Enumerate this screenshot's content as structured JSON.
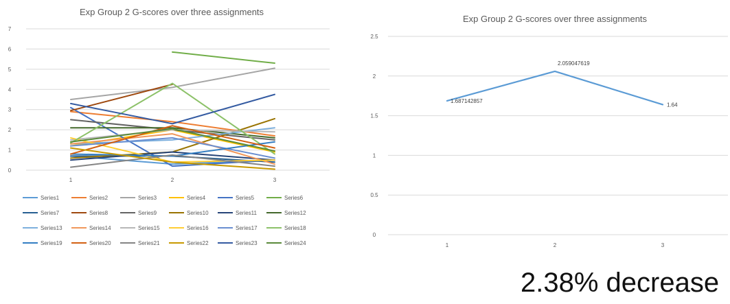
{
  "caption": "2.38% decrease",
  "chart_data": [
    {
      "type": "line",
      "title": "Exp Group 2 G-scores over three assignments",
      "xlabel": "",
      "ylabel": "",
      "categories": [
        "1",
        "2",
        "3"
      ],
      "ylim": [
        0,
        7
      ],
      "yticks": [
        "0",
        "1",
        "2",
        "3",
        "4",
        "5",
        "6",
        "7"
      ],
      "grid": true,
      "legend": "bottom",
      "series": [
        {
          "name": "Series1",
          "color": "#5B9BD5",
          "values": [
            0.7,
            0.3,
            0.5
          ]
        },
        {
          "name": "Series2",
          "color": "#ED7D31",
          "values": [
            2.9,
            2.4,
            1.7
          ]
        },
        {
          "name": "Series3",
          "color": "#A5A5A5",
          "values": [
            3.5,
            4.1,
            5.05
          ]
        },
        {
          "name": "Series4",
          "color": "#FFC000",
          "values": [
            1.2,
            2.0,
            0.9
          ]
        },
        {
          "name": "Series5",
          "color": "#4472C4",
          "values": [
            3.1,
            0.2,
            0.5
          ]
        },
        {
          "name": "Series6",
          "color": "#70AD47",
          "values": [
            null,
            5.85,
            5.3
          ]
        },
        {
          "name": "Series7",
          "color": "#255E91",
          "values": [
            0.7,
            0.7,
            0.4
          ]
        },
        {
          "name": "Series8",
          "color": "#9E480E",
          "values": [
            2.95,
            4.25,
            null
          ]
        },
        {
          "name": "Series9",
          "color": "#636363",
          "values": [
            2.5,
            2.0,
            1.5
          ]
        },
        {
          "name": "Series10",
          "color": "#997300",
          "values": [
            0.6,
            0.9,
            2.55
          ]
        },
        {
          "name": "Series11",
          "color": "#264478",
          "values": [
            0.5,
            0.9,
            0.5
          ]
        },
        {
          "name": "Series12",
          "color": "#43682B",
          "values": [
            2.1,
            2.1,
            1.6
          ]
        },
        {
          "name": "Series13",
          "color": "#7CAFDD",
          "values": [
            1.3,
            1.5,
            2.1
          ]
        },
        {
          "name": "Series14",
          "color": "#F1975A",
          "values": [
            1.3,
            1.8,
            0.3
          ]
        },
        {
          "name": "Series15",
          "color": "#B7B7B7",
          "values": [
            1.5,
            2.0,
            1.9
          ]
        },
        {
          "name": "Series16",
          "color": "#FFCD33",
          "values": [
            1.6,
            0.4,
            0.5
          ]
        },
        {
          "name": "Series17",
          "color": "#698ED0",
          "values": [
            1.2,
            1.6,
            0.6
          ]
        },
        {
          "name": "Series18",
          "color": "#8CC168",
          "values": [
            1.35,
            4.3,
            0.8
          ]
        },
        {
          "name": "Series19",
          "color": "#327DC2",
          "values": [
            0.8,
            0.7,
            1.4
          ]
        },
        {
          "name": "Series20",
          "color": "#D26012",
          "values": [
            0.8,
            2.2,
            1.1
          ]
        },
        {
          "name": "Series21",
          "color": "#848484",
          "values": [
            0.15,
            0.75,
            0.2
          ]
        },
        {
          "name": "Series22",
          "color": "#C79900",
          "values": [
            1.1,
            0.4,
            0.05
          ]
        },
        {
          "name": "Series23",
          "color": "#335AA1",
          "values": [
            3.3,
            2.3,
            3.75
          ]
        },
        {
          "name": "Series24",
          "color": "#5A8A39",
          "values": [
            1.4,
            2.05,
            0.95
          ]
        }
      ]
    },
    {
      "type": "line",
      "title": "Exp Group 2 G-scores over three assignments",
      "xlabel": "",
      "ylabel": "",
      "categories": [
        "1",
        "2",
        "3"
      ],
      "ylim": [
        0,
        2.5
      ],
      "yticks": [
        "0",
        "0.5",
        "1",
        "1.5",
        "2",
        "2.5"
      ],
      "grid": true,
      "legend": "none",
      "series": [
        {
          "color": "#5B9BD5",
          "values": [
            1.687142857,
            2.059047619,
            1.64
          ],
          "labels": [
            "1.687142857",
            "2.059047619",
            "1.64"
          ]
        }
      ]
    }
  ]
}
